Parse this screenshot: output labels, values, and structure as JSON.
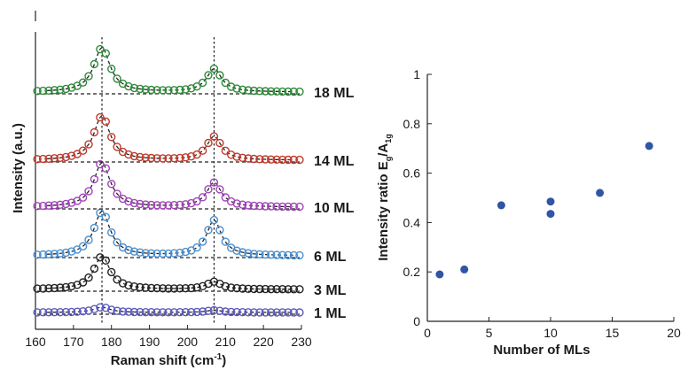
{
  "chart_data": [
    {
      "type": "line",
      "panel": "left",
      "xlabel": "Raman shift",
      "xlabel_unit": "(cm",
      "xlabel_unit_sup": "-1",
      "xlabel_unit_close": ")",
      "ylabel": "Intensity (a.u.)",
      "xlim": [
        160,
        230
      ],
      "xticks": [
        "160",
        "170",
        "180",
        "190",
        "200",
        "210",
        "220",
        "230"
      ],
      "peak_positions": [
        177.5,
        207
      ],
      "series": [
        {
          "name": "1 ML",
          "color": "#5b5bbd",
          "peak1": 0.12,
          "peak2": 0.05
        },
        {
          "name": "3 ML",
          "color": "#222222",
          "peak1": 0.75,
          "peak2": 0.17
        },
        {
          "name": "6 ML",
          "color": "#4a8fd0",
          "peak1": 1.0,
          "peak2": 0.8
        },
        {
          "name": "10 ML",
          "color": "#a144b8",
          "peak1": 1.0,
          "peak2": 0.55
        },
        {
          "name": "14 ML",
          "color": "#c0392b",
          "peak1": 1.0,
          "peak2": 0.53
        },
        {
          "name": "18 ML",
          "color": "#2e8b3a",
          "peak1": 1.0,
          "peak2": 0.52
        }
      ]
    },
    {
      "type": "scatter",
      "panel": "right",
      "xlabel": "Number of MLs",
      "ylabel_main": "Intensity ratio E",
      "ylabel_sub1": "g",
      "ylabel_mid": "/A",
      "ylabel_sub2": "1g",
      "xlim": [
        0,
        20
      ],
      "ylim": [
        0,
        1
      ],
      "xticks": [
        "0",
        "5",
        "10",
        "15",
        "20"
      ],
      "yticks": [
        "0",
        "0.2",
        "0.4",
        "0.6",
        "0.8",
        "1"
      ],
      "color": "#2f55a4",
      "points": [
        {
          "x": 1,
          "y": 0.19
        },
        {
          "x": 3,
          "y": 0.21
        },
        {
          "x": 6,
          "y": 0.47
        },
        {
          "x": 10,
          "y": 0.485
        },
        {
          "x": 10,
          "y": 0.435
        },
        {
          "x": 14,
          "y": 0.52
        },
        {
          "x": 18,
          "y": 0.71
        }
      ]
    }
  ]
}
